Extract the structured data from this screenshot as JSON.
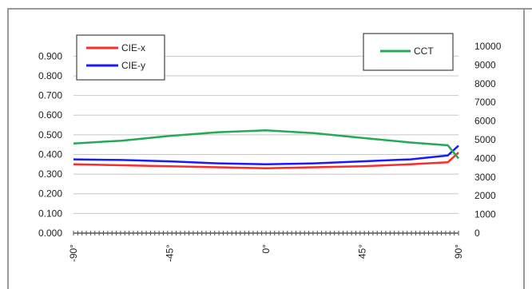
{
  "chart_data": {
    "type": "line",
    "x_categories": [
      "-90°",
      "-45°",
      "0°",
      "45°",
      "90°"
    ],
    "y_left": {
      "ticks": [
        "0.000",
        "0.100",
        "0.200",
        "0.300",
        "0.400",
        "0.500",
        "0.600",
        "0.700",
        "0.800",
        "0.900"
      ],
      "min": 0,
      "max": 0.95
    },
    "y_right": {
      "ticks": [
        "0",
        "1000",
        "2000",
        "3000",
        "4000",
        "5000",
        "6000",
        "7000",
        "8000",
        "9000",
        "10000"
      ],
      "min": 0,
      "max": 10000
    },
    "grid": true,
    "series": [
      {
        "name": "CIE-x",
        "axis": "left",
        "color": "#ff2a2a",
        "x": [
          -90,
          -67.5,
          -45,
          -22.5,
          0,
          22.5,
          45,
          67.5,
          85,
          90
        ],
        "y": [
          0.35,
          0.345,
          0.34,
          0.335,
          0.33,
          0.335,
          0.34,
          0.35,
          0.36,
          0.41
        ]
      },
      {
        "name": "CIE-y",
        "axis": "left",
        "color": "#1a1aff",
        "x": [
          -90,
          -67.5,
          -45,
          -22.5,
          0,
          22.5,
          45,
          67.5,
          85,
          90
        ],
        "y": [
          0.375,
          0.372,
          0.365,
          0.355,
          0.35,
          0.355,
          0.365,
          0.375,
          0.395,
          0.445
        ]
      },
      {
        "name": "CCT",
        "axis": "right",
        "color": "#22aa55",
        "x": [
          -90,
          -67.5,
          -45,
          -22.5,
          0,
          22.5,
          45,
          67.5,
          85,
          90
        ],
        "y": [
          4800,
          4950,
          5200,
          5400,
          5500,
          5350,
          5100,
          4850,
          4700,
          4000
        ]
      }
    ],
    "legends": [
      {
        "entries": [
          "CIE-x",
          "CIE-y"
        ],
        "placement": "top-left"
      },
      {
        "entries": [
          "CCT"
        ],
        "placement": "top-right"
      }
    ]
  }
}
